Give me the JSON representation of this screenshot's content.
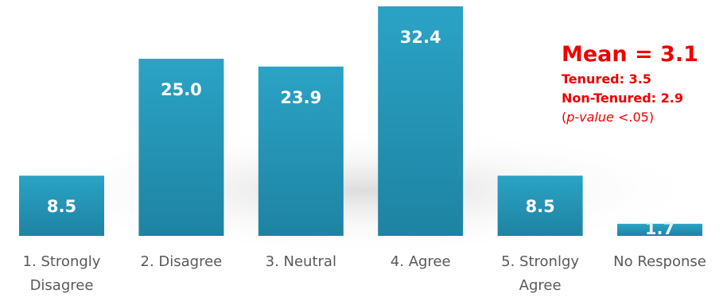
{
  "chart_data": {
    "type": "bar",
    "categories": [
      [
        "1. Strongly",
        "Disagree"
      ],
      [
        "2. Disagree"
      ],
      [
        "3. Neutral"
      ],
      [
        "4. Agree"
      ],
      [
        "5.   Stronlgy",
        "Agree"
      ],
      [
        "No Response"
      ]
    ],
    "values": [
      8.5,
      25.0,
      23.9,
      32.4,
      8.5,
      1.7
    ],
    "value_labels": [
      "8.5",
      "25.0",
      "23.9",
      "32.4",
      "8.5",
      "1.7"
    ],
    "ylim": [
      0,
      35
    ],
    "grid": false,
    "bar_color": "#2a9bbd",
    "bar_color_dark": "#1f7f9e"
  },
  "annotation": {
    "mean": "Mean = 3.1",
    "tenured": "Tenured: 3.5",
    "non_tenured": "Non-Tenured: 2.9",
    "pvalue_open": "(",
    "pvalue_italic": "p-value",
    "pvalue_rest": " <.05)",
    "color": "#ee0000"
  }
}
